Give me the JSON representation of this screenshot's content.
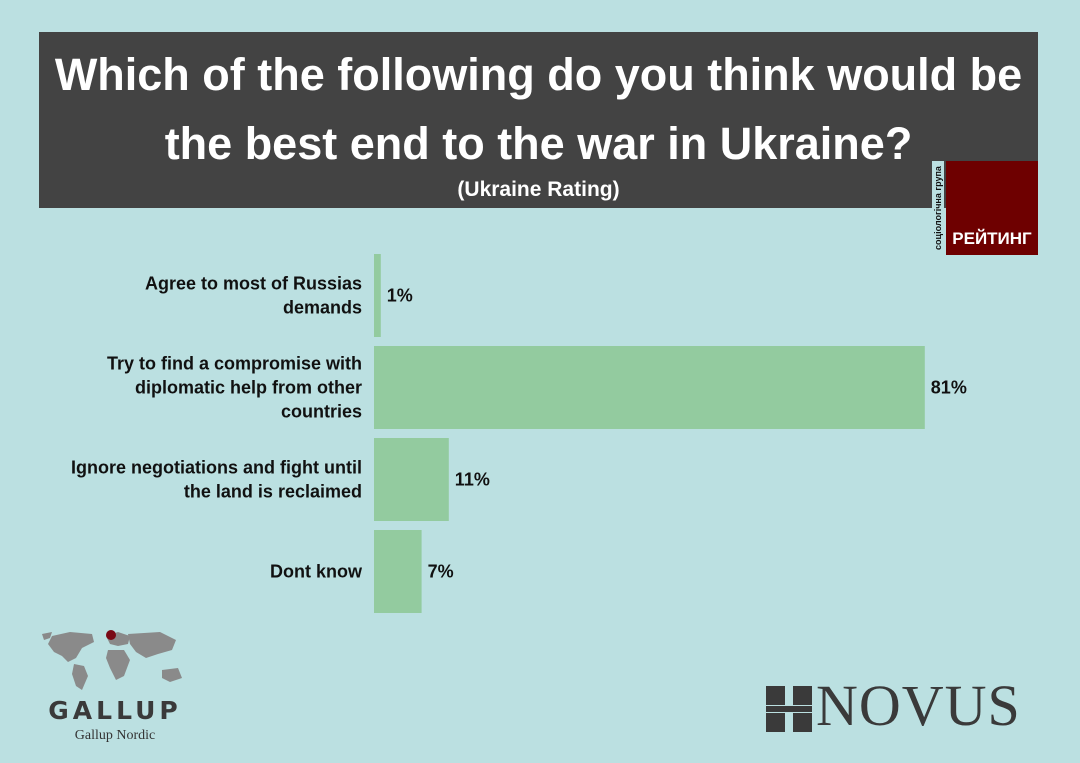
{
  "header": {
    "title_line1": "Which of the following do you think would be",
    "title_line2": "the best end to the war in Ukraine?",
    "subtitle": "(Ukraine Rating)"
  },
  "rating_logo": {
    "vertical_text": "соціологічна група",
    "name": "РЕЙТИНГ",
    "color": "#6e0000"
  },
  "chart_data": {
    "type": "bar",
    "orientation": "horizontal",
    "categories": [
      [
        "Agree to most of Russias",
        "demands"
      ],
      [
        "Try to find a compromise with",
        "diplomatic help from other",
        "countries"
      ],
      [
        "Ignore negotiations and fight until",
        "the land is reclaimed"
      ],
      [
        "Dont know"
      ]
    ],
    "values": [
      1,
      81,
      11,
      7
    ],
    "value_labels": [
      "1%",
      "81%",
      "11%",
      "7%"
    ],
    "unit": "%",
    "xlim": [
      0,
      100
    ],
    "bar_color": "#93cb9f",
    "grid": false
  },
  "logos": {
    "gallup_word": "GALLUP",
    "gallup_sub": "Gallup Nordic",
    "novus_word": "NOVUS"
  },
  "colors": {
    "background": "#bbe0e1",
    "title_box": "#434343",
    "logo_gray": "#3a3a3a"
  }
}
